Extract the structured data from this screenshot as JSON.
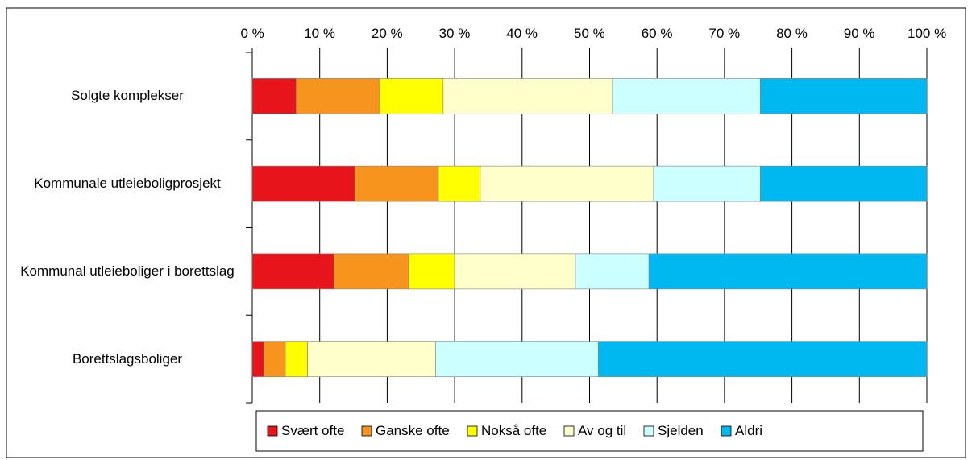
{
  "chart_data": {
    "type": "stacked_barh",
    "categories": [
      "Solgte komplekser",
      "Kommunale utleieboligprosjekt",
      "Kommunal utleieboliger i borettslag",
      "Borettslagsboliger"
    ],
    "series": [
      {
        "name": "Svært ofte",
        "color": "#e8141b",
        "values": [
          6.5,
          15.2,
          12.1,
          1.7
        ]
      },
      {
        "name": "Ganske ofte",
        "color": "#f7941d",
        "values": [
          12.4,
          12.4,
          11.1,
          3.2
        ]
      },
      {
        "name": "Nokså ofte",
        "color": "#ffff00",
        "values": [
          9.4,
          6.2,
          6.8,
          3.3
        ]
      },
      {
        "name": "Av og til",
        "color": "#ffffcc",
        "values": [
          25.1,
          25.7,
          17.9,
          19.0
        ]
      },
      {
        "name": "Sjelden",
        "color": "#ccffff",
        "values": [
          21.9,
          15.8,
          10.9,
          24.1
        ]
      },
      {
        "name": "Aldri",
        "color": "#00b8f0",
        "values": [
          24.7,
          24.7,
          41.2,
          48.7
        ]
      }
    ],
    "xlim": [
      0,
      100
    ],
    "xticks": [
      {
        "value": 0,
        "label": "0 %"
      },
      {
        "value": 10,
        "label": "10 %"
      },
      {
        "value": 20,
        "label": "20 %"
      },
      {
        "value": 30,
        "label": "30 %"
      },
      {
        "value": 40,
        "label": "40 %"
      },
      {
        "value": 50,
        "label": "50 %"
      },
      {
        "value": 60,
        "label": "60 %"
      },
      {
        "value": 70,
        "label": "70 %"
      },
      {
        "value": 80,
        "label": "80 %"
      },
      {
        "value": 90,
        "label": "90 %"
      },
      {
        "value": 100,
        "label": "100 %"
      }
    ],
    "grid": true,
    "legend": "bottom"
  }
}
